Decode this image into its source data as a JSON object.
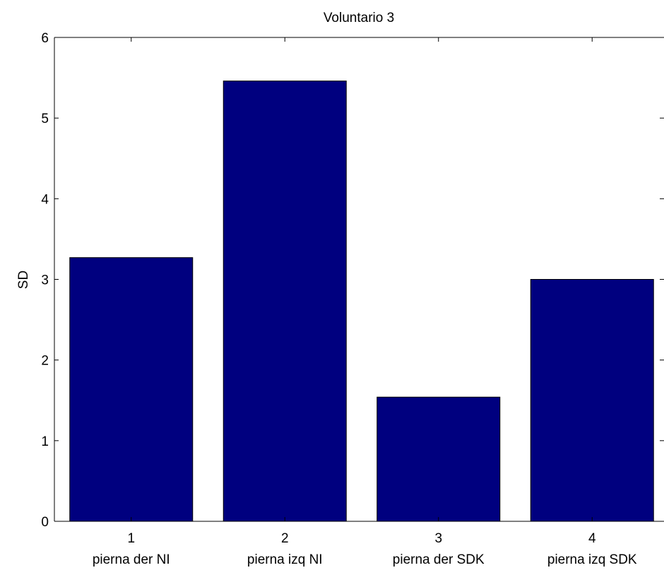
{
  "chart_data": {
    "type": "bar",
    "title": "Voluntario 3",
    "xlabel": "",
    "ylabel": "SD",
    "ylim": [
      0,
      6
    ],
    "yticks": [
      0,
      1,
      2,
      3,
      4,
      5,
      6
    ],
    "categories": [
      "1",
      "2",
      "3",
      "4"
    ],
    "category_names": [
      "pierna der NI",
      "pierna izq NI",
      "pierna der SDK",
      "pierna izq SDK"
    ],
    "values": [
      3.27,
      5.46,
      1.54,
      3.0
    ],
    "bar_color": "#00007f",
    "grid": false
  }
}
